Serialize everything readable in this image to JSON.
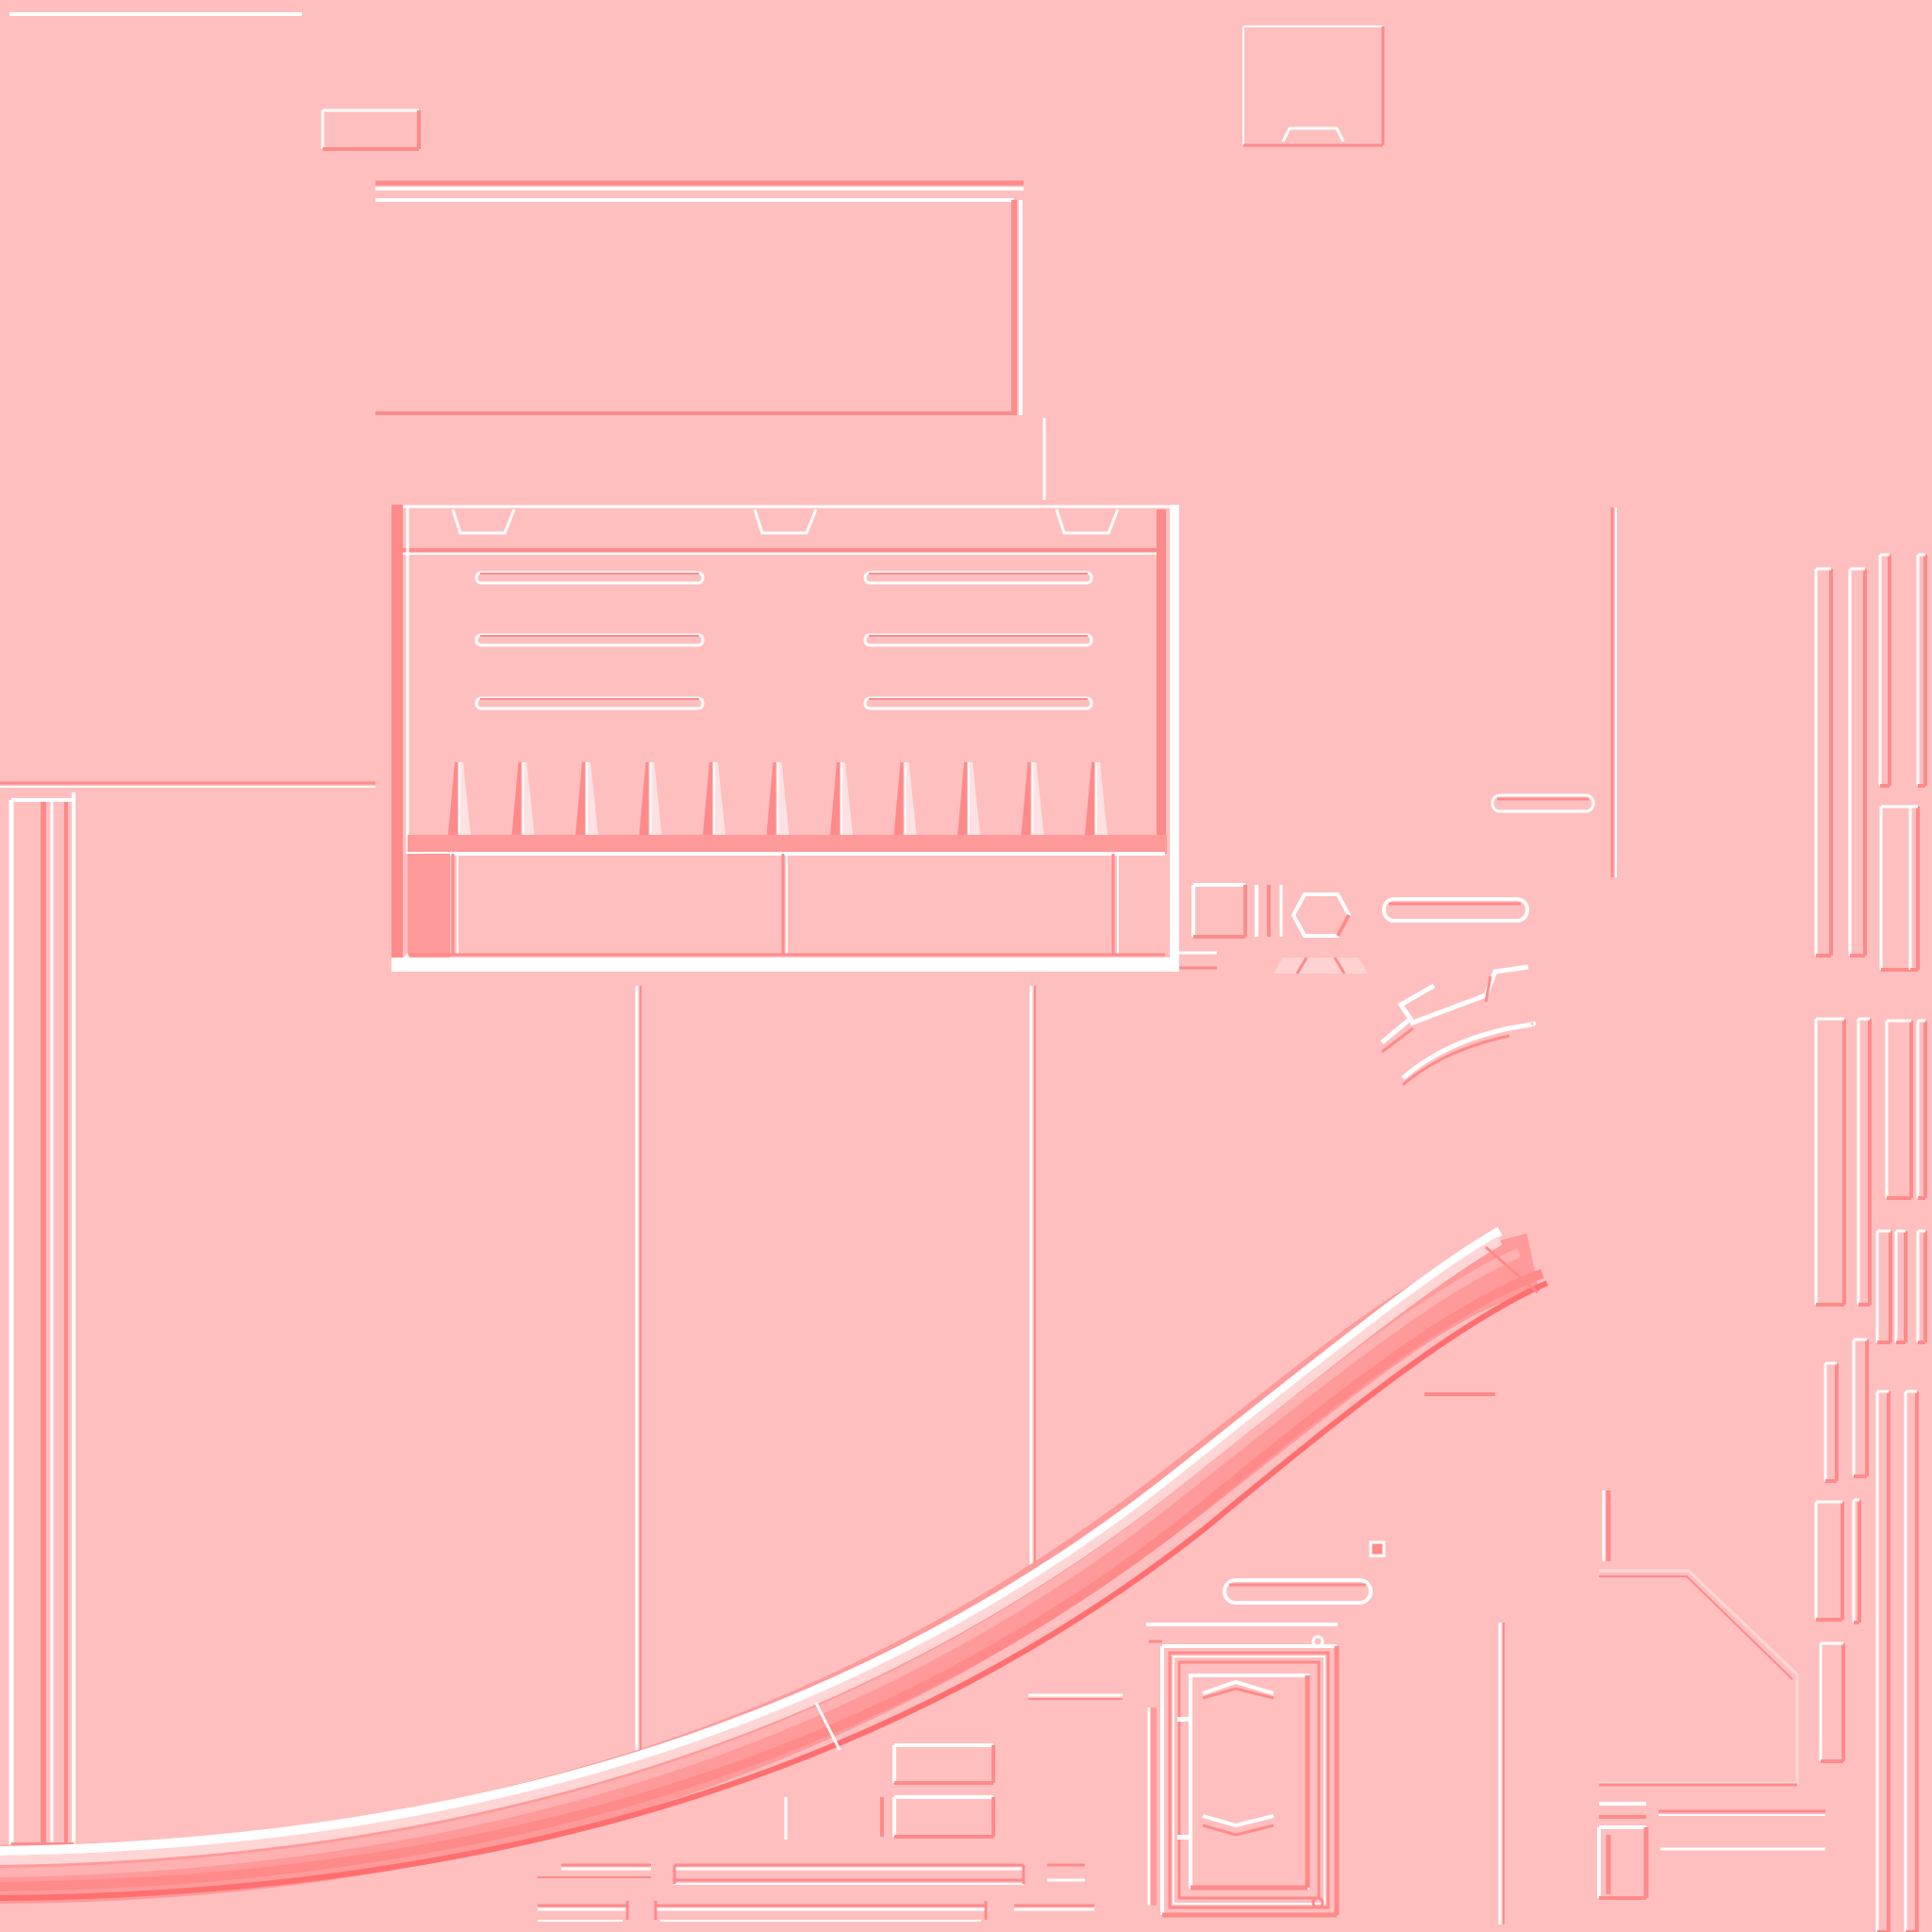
{
  "texture": {
    "kind": "normal-map-sheet",
    "colors": {
      "base": "#ffbfbf",
      "highlight": "#ffffff",
      "soft_highlight": "#ffe1e1",
      "shadow": "#ff8a8a",
      "deep_shadow": "#ff6f6f",
      "mid": "#ffa3a3"
    }
  }
}
